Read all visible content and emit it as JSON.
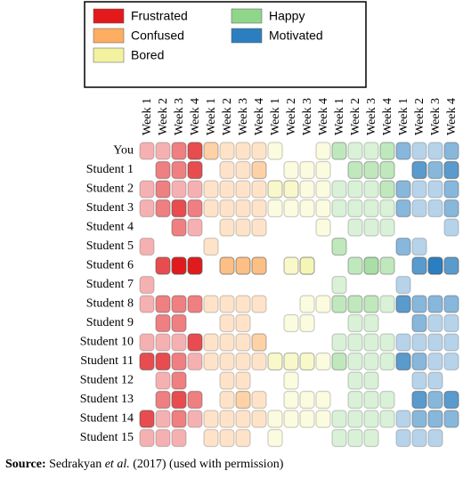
{
  "chart_data": {
    "type": "heatmap",
    "categories": [
      "You",
      "Student 1",
      "Student 2",
      "Student 3",
      "Student 4",
      "Student 5",
      "Student 6",
      "Student 7",
      "Student 8",
      "Student 9",
      "Student 10",
      "Student 11",
      "Student 12",
      "Student 13",
      "Student 14",
      "Student 15"
    ],
    "weeks": [
      "Week 1",
      "Week 2",
      "Week 3",
      "Week 4"
    ],
    "clim": [
      0,
      4
    ],
    "series": [
      {
        "name": "Frustrated",
        "color": "#e31a1c",
        "values": [
          [
            1,
            1,
            2,
            3
          ],
          [
            0,
            2,
            2,
            3
          ],
          [
            1,
            2,
            1,
            1
          ],
          [
            1,
            2,
            3,
            2
          ],
          [
            0,
            0,
            2,
            1
          ],
          [
            1,
            0,
            0,
            0
          ],
          [
            0,
            3,
            4,
            4
          ],
          [
            1,
            0,
            0,
            0
          ],
          [
            1,
            2,
            2,
            2
          ],
          [
            0,
            2,
            2,
            0
          ],
          [
            1,
            1,
            1,
            3
          ],
          [
            3,
            3,
            2,
            1
          ],
          [
            0,
            1,
            2,
            0
          ],
          [
            0,
            2,
            3,
            2
          ],
          [
            3,
            1,
            2,
            1
          ],
          [
            1,
            1,
            1,
            0
          ]
        ]
      },
      {
        "name": "Confused",
        "color": "#fdae61",
        "values": [
          [
            2,
            1,
            1,
            1
          ],
          [
            0,
            1,
            1,
            2
          ],
          [
            1,
            1,
            1,
            1
          ],
          [
            1,
            1,
            1,
            1
          ],
          [
            0,
            1,
            1,
            1
          ],
          [
            1,
            0,
            0,
            0
          ],
          [
            0,
            3,
            3,
            3
          ],
          [
            0,
            0,
            0,
            0
          ],
          [
            1,
            1,
            1,
            1
          ],
          [
            0,
            1,
            1,
            0
          ],
          [
            1,
            1,
            1,
            2
          ],
          [
            1,
            1,
            1,
            1
          ],
          [
            0,
            1,
            1,
            0
          ],
          [
            0,
            1,
            2,
            1
          ],
          [
            1,
            1,
            1,
            1
          ],
          [
            1,
            1,
            1,
            0
          ]
        ]
      },
      {
        "name": "Bored",
        "color": "#f2f2a0",
        "values": [
          [
            1,
            0,
            0,
            1
          ],
          [
            0,
            1,
            1,
            1
          ],
          [
            2,
            2,
            1,
            1
          ],
          [
            1,
            1,
            1,
            1
          ],
          [
            0,
            0,
            0,
            1
          ],
          [
            0,
            0,
            0,
            0
          ],
          [
            0,
            2,
            3,
            0
          ],
          [
            0,
            0,
            0,
            0
          ],
          [
            0,
            0,
            1,
            1
          ],
          [
            0,
            1,
            1,
            0
          ],
          [
            0,
            0,
            0,
            0
          ],
          [
            2,
            2,
            2,
            1
          ],
          [
            0,
            1,
            0,
            0
          ],
          [
            0,
            1,
            1,
            1
          ],
          [
            1,
            1,
            1,
            1
          ],
          [
            1,
            0,
            0,
            0
          ]
        ]
      },
      {
        "name": "Happy",
        "color": "#8fd68a",
        "values": [
          [
            2,
            1,
            1,
            2
          ],
          [
            0,
            2,
            2,
            2
          ],
          [
            1,
            1,
            1,
            2
          ],
          [
            1,
            1,
            1,
            1
          ],
          [
            0,
            1,
            1,
            1
          ],
          [
            2,
            0,
            0,
            0
          ],
          [
            0,
            2,
            3,
            2
          ],
          [
            1,
            0,
            0,
            0
          ],
          [
            2,
            2,
            2,
            1
          ],
          [
            0,
            1,
            1,
            0
          ],
          [
            1,
            1,
            1,
            1
          ],
          [
            2,
            1,
            1,
            1
          ],
          [
            0,
            1,
            1,
            0
          ],
          [
            0,
            1,
            1,
            1
          ],
          [
            1,
            1,
            1,
            1
          ],
          [
            1,
            1,
            1,
            0
          ]
        ]
      },
      {
        "name": "Motivated",
        "color": "#2b7fc0",
        "values": [
          [
            2,
            1,
            1,
            2
          ],
          [
            0,
            3,
            2,
            3
          ],
          [
            2,
            1,
            1,
            2
          ],
          [
            2,
            1,
            1,
            2
          ],
          [
            0,
            0,
            0,
            1
          ],
          [
            2,
            1,
            0,
            0
          ],
          [
            0,
            3,
            4,
            3
          ],
          [
            1,
            0,
            0,
            0
          ],
          [
            3,
            2,
            2,
            2
          ],
          [
            0,
            2,
            1,
            1
          ],
          [
            1,
            1,
            1,
            1
          ],
          [
            3,
            2,
            1,
            1
          ],
          [
            0,
            1,
            1,
            0
          ],
          [
            0,
            3,
            2,
            3
          ],
          [
            1,
            2,
            2,
            2
          ],
          [
            1,
            1,
            1,
            0
          ]
        ]
      }
    ],
    "caption": [
      "Source:",
      "Sedrakyan",
      "et al.",
      "(2017) (used with permission)"
    ]
  }
}
